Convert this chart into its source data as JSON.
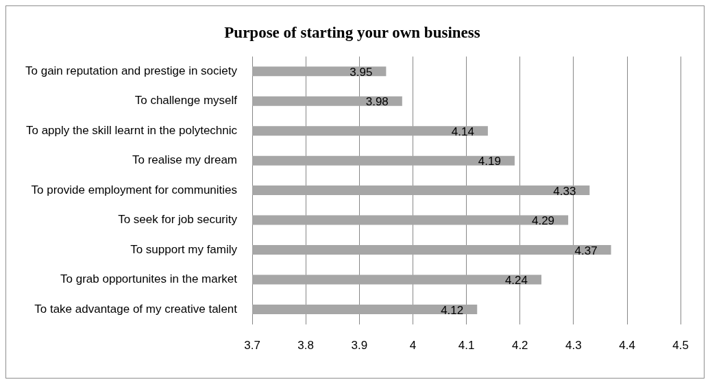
{
  "chart_data": {
    "type": "bar",
    "orientation": "horizontal",
    "title": "Purpose of starting your own business",
    "categories": [
      "To gain reputation and prestige in society",
      "To challenge myself",
      "To apply the skill learnt in the polytechnic",
      "To realise my dream",
      "To provide employment for communities",
      "To seek for job security",
      "To support my family",
      "To grab opportunites in the market",
      "To take advantage of my creative talent"
    ],
    "values": [
      3.95,
      3.98,
      4.14,
      4.19,
      4.33,
      4.29,
      4.37,
      4.24,
      4.12
    ],
    "color": "#a6a6a6",
    "xlim": [
      3.7,
      4.5
    ],
    "xticks": [
      3.7,
      3.8,
      3.9,
      4,
      4.1,
      4.2,
      4.3,
      4.4,
      4.5
    ],
    "grid": "x",
    "data_labels": true,
    "legend": false
  }
}
